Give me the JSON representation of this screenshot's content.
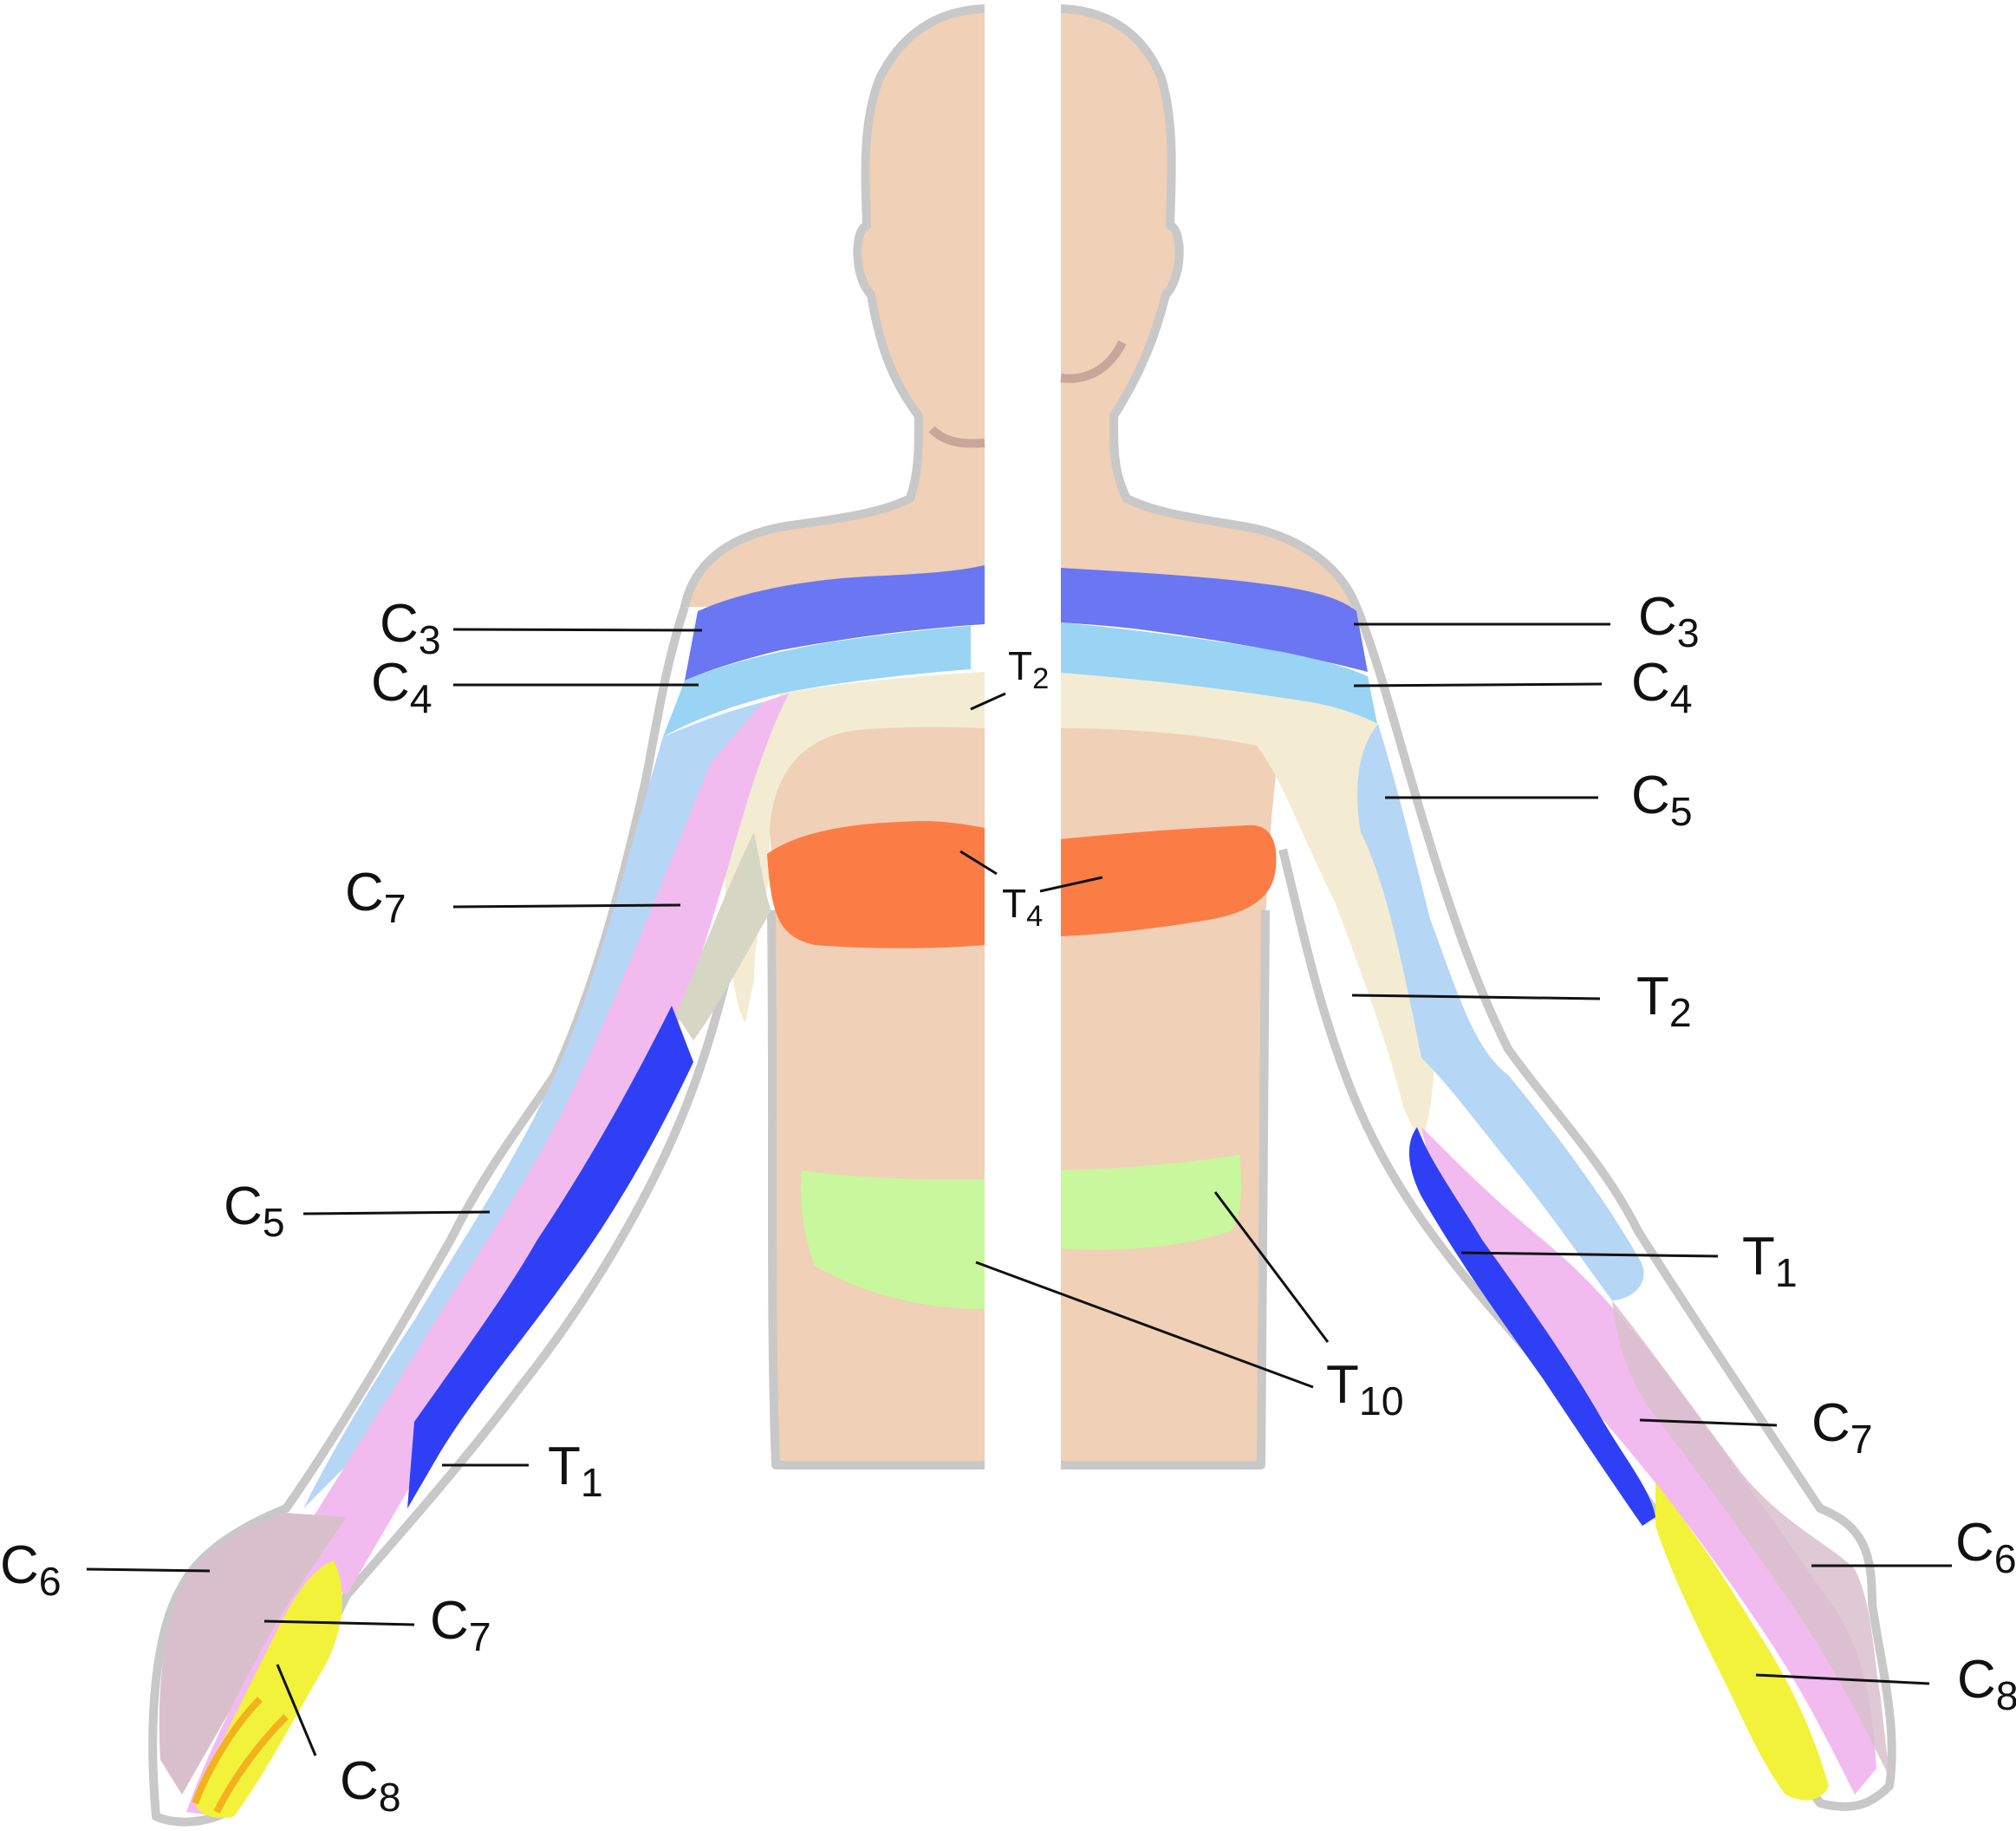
{
  "colors": {
    "skin": "#f0d0b6",
    "outline": "#c8c8c8",
    "C3": "#6a76f2",
    "C4": "#99d4f5",
    "C5": "#b5d6f5",
    "C6": "#d9bfcc",
    "C7": "#f2bbf0",
    "C8": "#f2f23a",
    "T1": "#2f3ff5",
    "T2": "#f3ecd3",
    "T4": "#fb7d45",
    "T10": "#c9f79d"
  },
  "labels": {
    "left": {
      "c3": {
        "main": "C",
        "sub": "3"
      },
      "c4": {
        "main": "C",
        "sub": "4"
      },
      "c7_upper": {
        "main": "C",
        "sub": "7"
      },
      "c5": {
        "main": "C",
        "sub": "5"
      },
      "t1": {
        "main": "T",
        "sub": "1"
      },
      "c6": {
        "main": "C",
        "sub": "6"
      },
      "c7_hand": {
        "main": "C",
        "sub": "7"
      },
      "c8": {
        "main": "C",
        "sub": "8"
      }
    },
    "center": {
      "t2": {
        "main": "T",
        "sub": "2"
      },
      "t4": {
        "main": "T",
        "sub": "4"
      },
      "t10": {
        "main": "T",
        "sub": "10"
      }
    },
    "right": {
      "c3": {
        "main": "C",
        "sub": "3"
      },
      "c4": {
        "main": "C",
        "sub": "4"
      },
      "c5": {
        "main": "C",
        "sub": "5"
      },
      "t2": {
        "main": "T",
        "sub": "2"
      },
      "t1": {
        "main": "T",
        "sub": "1"
      },
      "c7": {
        "main": "C",
        "sub": "7"
      },
      "c6": {
        "main": "C",
        "sub": "6"
      },
      "c8": {
        "main": "C",
        "sub": "8"
      }
    }
  }
}
